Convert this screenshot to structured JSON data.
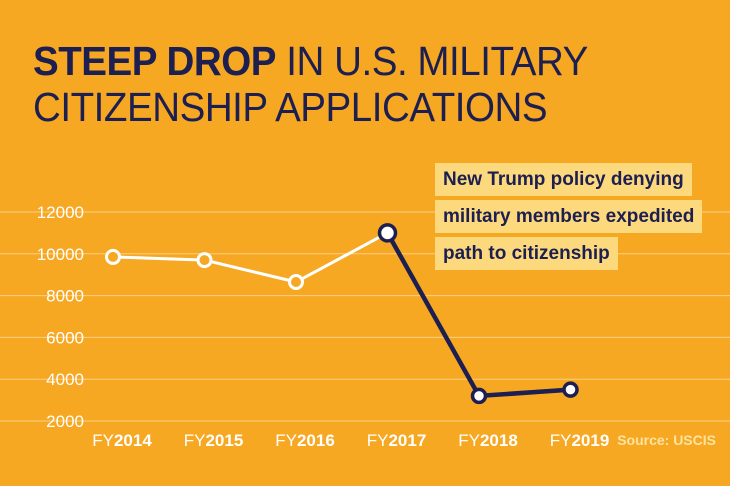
{
  "title": {
    "highlight": "STEEP DROP",
    "rest": " IN U.S. MILITARY CITIZENSHIP APPLICATIONS"
  },
  "annotation": {
    "lines": [
      "New Trump policy denying",
      "military members expedited",
      "path to citizenship"
    ]
  },
  "source": "Source: USCIS",
  "colors": {
    "background": "#F7A823",
    "before_policy": "#FFFFFF",
    "after_policy": "#1C1F4F",
    "annotation_bg": "#FDD97E",
    "grid": "#FFFFFF"
  },
  "chart_data": {
    "type": "line",
    "title": "STEEP DROP IN U.S. MILITARY CITIZENSHIP APPLICATIONS",
    "categories": [
      "FY2014",
      "FY2015",
      "FY2016",
      "FY2017",
      "FY2018",
      "FY2019"
    ],
    "category_labels": [
      {
        "prefix": "FY",
        "year": "2014"
      },
      {
        "prefix": "FY",
        "year": "2015"
      },
      {
        "prefix": "FY",
        "year": "2016"
      },
      {
        "prefix": "FY",
        "year": "2017"
      },
      {
        "prefix": "FY",
        "year": "2018"
      },
      {
        "prefix": "FY",
        "year": "2019"
      }
    ],
    "values": [
      9850,
      9700,
      8650,
      11000,
      3200,
      3500
    ],
    "segments": [
      {
        "from": 0,
        "to": 3,
        "color": "#FFFFFF"
      },
      {
        "from": 3,
        "to": 5,
        "color": "#1C1F4F"
      }
    ],
    "yticks": [
      2000,
      4000,
      6000,
      8000,
      10000,
      12000
    ],
    "ylim": [
      2000,
      12000
    ],
    "grid": true,
    "xlabel": "",
    "ylabel": ""
  }
}
